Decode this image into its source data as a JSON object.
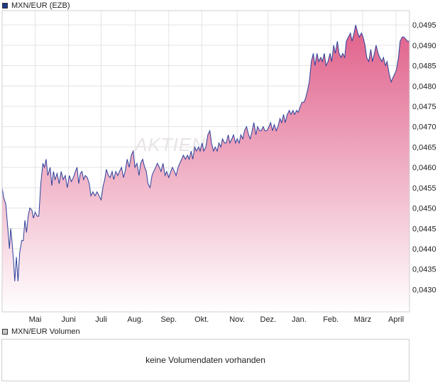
{
  "legend": {
    "price_label": "MXN/EUR (EZB)",
    "price_color": "#1f3a8a",
    "volume_label": "MXN/EUR Volumen",
    "volume_color": "#c8c8c8"
  },
  "volume": {
    "message": "keine Volumendaten vorhanden"
  },
  "watermark": "AKTIEN",
  "colors": {
    "line": "#2b3f9a",
    "fill_top": "#e0608a",
    "fill_bottom": "#ffffff",
    "grid": "#e4e4e4"
  },
  "chart_data": {
    "type": "area",
    "ylim": [
      0.04245,
      0.04985
    ],
    "yticks": [
      {
        "value": 0.043,
        "label": "0,0430"
      },
      {
        "value": 0.0435,
        "label": "0,0435"
      },
      {
        "value": 0.044,
        "label": "0,0440"
      },
      {
        "value": 0.0445,
        "label": "0,0445"
      },
      {
        "value": 0.045,
        "label": "0,0450"
      },
      {
        "value": 0.0455,
        "label": "0,0455"
      },
      {
        "value": 0.046,
        "label": "0,0460"
      },
      {
        "value": 0.0465,
        "label": "0,0465"
      },
      {
        "value": 0.047,
        "label": "0,0470"
      },
      {
        "value": 0.0475,
        "label": "0,0475"
      },
      {
        "value": 0.048,
        "label": "0,0480"
      },
      {
        "value": 0.0485,
        "label": "0,0485"
      },
      {
        "value": 0.049,
        "label": "0,0490"
      },
      {
        "value": 0.0495,
        "label": "0,0495"
      }
    ],
    "xlim": [
      0,
      100
    ],
    "xticks": [
      {
        "pos": 8.1,
        "label": "Mai"
      },
      {
        "pos": 16.3,
        "label": "Juni"
      },
      {
        "pos": 24.3,
        "label": "Juli"
      },
      {
        "pos": 32.7,
        "label": "Aug."
      },
      {
        "pos": 40.9,
        "label": "Sep."
      },
      {
        "pos": 49.0,
        "label": "Okt."
      },
      {
        "pos": 57.7,
        "label": "Nov."
      },
      {
        "pos": 65.3,
        "label": "Dez."
      },
      {
        "pos": 72.9,
        "label": "Jan."
      },
      {
        "pos": 80.7,
        "label": "Feb."
      },
      {
        "pos": 88.5,
        "label": "März"
      },
      {
        "pos": 96.7,
        "label": "April"
      }
    ],
    "series": [
      {
        "points": [
          [
            0,
            0.0455
          ],
          [
            0.4,
            0.04525
          ],
          [
            0.9,
            0.0451
          ],
          [
            1.4,
            0.0445
          ],
          [
            1.8,
            0.044
          ],
          [
            2.1,
            0.0445
          ],
          [
            2.4,
            0.0442
          ],
          [
            2.8,
            0.0437
          ],
          [
            3.1,
            0.0432
          ],
          [
            3.5,
            0.0438
          ],
          [
            3.9,
            0.0432
          ],
          [
            4.3,
            0.0439
          ],
          [
            4.8,
            0.0442
          ],
          [
            5.2,
            0.0442
          ],
          [
            5.6,
            0.0447
          ],
          [
            6.0,
            0.0444
          ],
          [
            6.4,
            0.0448
          ],
          [
            6.8,
            0.045
          ],
          [
            7.3,
            0.04495
          ],
          [
            7.7,
            0.04475
          ],
          [
            8.1,
            0.0449
          ],
          [
            8.6,
            0.0448
          ],
          [
            9.0,
            0.0448
          ],
          [
            9.5,
            0.0456
          ],
          [
            10.0,
            0.0461
          ],
          [
            10.4,
            0.046
          ],
          [
            10.8,
            0.0462
          ],
          [
            11.2,
            0.0458
          ],
          [
            11.8,
            0.046
          ],
          [
            12.2,
            0.04555
          ],
          [
            12.6,
            0.0459
          ],
          [
            13.0,
            0.0457
          ],
          [
            13.5,
            0.04585
          ],
          [
            14.0,
            0.0456
          ],
          [
            14.5,
            0.0459
          ],
          [
            15.0,
            0.0457
          ],
          [
            15.5,
            0.0458
          ],
          [
            16.0,
            0.0455
          ],
          [
            16.5,
            0.0458
          ],
          [
            17.0,
            0.04565
          ],
          [
            17.5,
            0.04575
          ],
          [
            18.0,
            0.0459
          ],
          [
            18.4,
            0.046
          ],
          [
            18.8,
            0.0456
          ],
          [
            19.2,
            0.04585
          ],
          [
            19.6,
            0.0459
          ],
          [
            20.0,
            0.0457
          ],
          [
            20.4,
            0.0458
          ],
          [
            20.9,
            0.04575
          ],
          [
            21.4,
            0.0456
          ],
          [
            21.8,
            0.0453
          ],
          [
            22.3,
            0.0454
          ],
          [
            22.8,
            0.0453
          ],
          [
            23.3,
            0.0454
          ],
          [
            23.8,
            0.0453
          ],
          [
            24.3,
            0.0452
          ],
          [
            24.8,
            0.04555
          ],
          [
            25.2,
            0.0457
          ],
          [
            25.6,
            0.04595
          ],
          [
            26.1,
            0.0458
          ],
          [
            26.5,
            0.04575
          ],
          [
            27.0,
            0.0459
          ],
          [
            27.4,
            0.0457
          ],
          [
            27.9,
            0.0459
          ],
          [
            28.4,
            0.0458
          ],
          [
            28.8,
            0.0459
          ],
          [
            29.3,
            0.046
          ],
          [
            29.8,
            0.04575
          ],
          [
            30.2,
            0.0459
          ],
          [
            30.7,
            0.0462
          ],
          [
            31.2,
            0.046
          ],
          [
            31.7,
            0.0463
          ],
          [
            32.2,
            0.0464
          ],
          [
            32.6,
            0.046
          ],
          [
            33.1,
            0.0461
          ],
          [
            33.6,
            0.0458
          ],
          [
            34.0,
            0.0461
          ],
          [
            34.5,
            0.0462
          ],
          [
            35.0,
            0.046
          ],
          [
            35.4,
            0.0459
          ],
          [
            35.8,
            0.0456
          ],
          [
            36.3,
            0.0455
          ],
          [
            36.8,
            0.0458
          ],
          [
            37.2,
            0.0459
          ],
          [
            37.7,
            0.046
          ],
          [
            38.1,
            0.0461
          ],
          [
            38.6,
            0.046
          ],
          [
            39.0,
            0.0459
          ],
          [
            39.5,
            0.0461
          ],
          [
            40.0,
            0.0458
          ],
          [
            40.4,
            0.0459
          ],
          [
            40.9,
            0.04575
          ],
          [
            41.4,
            0.0459
          ],
          [
            41.8,
            0.046
          ],
          [
            42.3,
            0.0459
          ],
          [
            42.7,
            0.0458
          ],
          [
            43.2,
            0.046
          ],
          [
            43.6,
            0.0461
          ],
          [
            44.1,
            0.0462
          ],
          [
            44.5,
            0.0463
          ],
          [
            45.0,
            0.0462
          ],
          [
            45.5,
            0.0463
          ],
          [
            45.9,
            0.0462
          ],
          [
            46.4,
            0.0464
          ],
          [
            46.8,
            0.0462
          ],
          [
            47.3,
            0.0465
          ],
          [
            47.7,
            0.0464
          ],
          [
            48.2,
            0.0465
          ],
          [
            48.6,
            0.0464
          ],
          [
            49.1,
            0.0466
          ],
          [
            49.5,
            0.0464
          ],
          [
            50.0,
            0.0465
          ],
          [
            50.5,
            0.0468
          ],
          [
            51.0,
            0.0469
          ],
          [
            51.4,
            0.0466
          ],
          [
            51.9,
            0.0464
          ],
          [
            52.3,
            0.0465
          ],
          [
            52.8,
            0.0464
          ],
          [
            53.2,
            0.0466
          ],
          [
            53.7,
            0.0465
          ],
          [
            54.1,
            0.0467
          ],
          [
            54.6,
            0.0466
          ],
          [
            55.0,
            0.0466
          ],
          [
            55.5,
            0.0468
          ],
          [
            55.9,
            0.0466
          ],
          [
            56.4,
            0.0467
          ],
          [
            56.8,
            0.0468
          ],
          [
            57.3,
            0.0466
          ],
          [
            57.7,
            0.0467
          ],
          [
            58.2,
            0.0466
          ],
          [
            58.6,
            0.0468
          ],
          [
            59.1,
            0.0467
          ],
          [
            59.5,
            0.0469
          ],
          [
            60.0,
            0.047
          ],
          [
            60.5,
            0.0468
          ],
          [
            60.9,
            0.0467
          ],
          [
            61.4,
            0.0469
          ],
          [
            61.8,
            0.0471
          ],
          [
            62.3,
            0.0468
          ],
          [
            62.7,
            0.047
          ],
          [
            63.2,
            0.0469
          ],
          [
            63.6,
            0.0469
          ],
          [
            64.1,
            0.047
          ],
          [
            64.5,
            0.0469
          ],
          [
            65.0,
            0.0469
          ],
          [
            65.5,
            0.047
          ],
          [
            65.9,
            0.0471
          ],
          [
            66.4,
            0.0469
          ],
          [
            66.8,
            0.04705
          ],
          [
            67.3,
            0.0469
          ],
          [
            67.7,
            0.047
          ],
          [
            68.2,
            0.0472
          ],
          [
            68.6,
            0.0471
          ],
          [
            69.1,
            0.0473
          ],
          [
            69.5,
            0.0471
          ],
          [
            70.0,
            0.0473
          ],
          [
            70.5,
            0.0474
          ],
          [
            70.9,
            0.0473
          ],
          [
            71.4,
            0.0474
          ],
          [
            71.8,
            0.0473
          ],
          [
            72.3,
            0.0474
          ],
          [
            72.7,
            0.04735
          ],
          [
            73.2,
            0.0475
          ],
          [
            73.6,
            0.0476
          ],
          [
            74.1,
            0.0476
          ],
          [
            74.5,
            0.0477
          ],
          [
            75.0,
            0.0479
          ],
          [
            75.4,
            0.0481
          ],
          [
            75.9,
            0.0486
          ],
          [
            76.4,
            0.0488
          ],
          [
            76.8,
            0.0485
          ],
          [
            77.3,
            0.0488
          ],
          [
            77.7,
            0.0486
          ],
          [
            78.2,
            0.0487
          ],
          [
            78.6,
            0.0486
          ],
          [
            79.1,
            0.0488
          ],
          [
            79.5,
            0.0485
          ],
          [
            80.0,
            0.0486
          ],
          [
            80.5,
            0.0488
          ],
          [
            80.9,
            0.0486
          ],
          [
            81.4,
            0.049
          ],
          [
            81.8,
            0.0488
          ],
          [
            82.3,
            0.0491
          ],
          [
            82.7,
            0.0488
          ],
          [
            83.2,
            0.0487
          ],
          [
            83.6,
            0.0488
          ],
          [
            84.1,
            0.0487
          ],
          [
            84.5,
            0.0491
          ],
          [
            85.0,
            0.0492
          ],
          [
            85.5,
            0.0493
          ],
          [
            85.9,
            0.0491
          ],
          [
            86.4,
            0.0493
          ],
          [
            86.8,
            0.0495
          ],
          [
            87.3,
            0.0493
          ],
          [
            87.7,
            0.0492
          ],
          [
            88.2,
            0.0493
          ],
          [
            88.6,
            0.0492
          ],
          [
            89.1,
            0.049
          ],
          [
            89.5,
            0.0487
          ],
          [
            90.0,
            0.0486
          ],
          [
            90.5,
            0.0489
          ],
          [
            90.9,
            0.0486
          ],
          [
            91.4,
            0.0488
          ],
          [
            91.8,
            0.049
          ],
          [
            92.3,
            0.0488
          ],
          [
            92.7,
            0.0487
          ],
          [
            93.2,
            0.0486
          ],
          [
            93.6,
            0.0487
          ],
          [
            94.1,
            0.0485
          ],
          [
            94.5,
            0.0486
          ],
          [
            95.0,
            0.0483
          ],
          [
            95.5,
            0.0481
          ],
          [
            95.9,
            0.0482
          ],
          [
            96.4,
            0.0483
          ],
          [
            96.8,
            0.0484
          ],
          [
            97.3,
            0.0487
          ],
          [
            97.7,
            0.0491
          ],
          [
            98.2,
            0.0492
          ],
          [
            98.6,
            0.0492
          ],
          [
            99.1,
            0.04915
          ],
          [
            99.5,
            0.0491
          ],
          [
            100,
            0.0491
          ]
        ]
      }
    ]
  }
}
